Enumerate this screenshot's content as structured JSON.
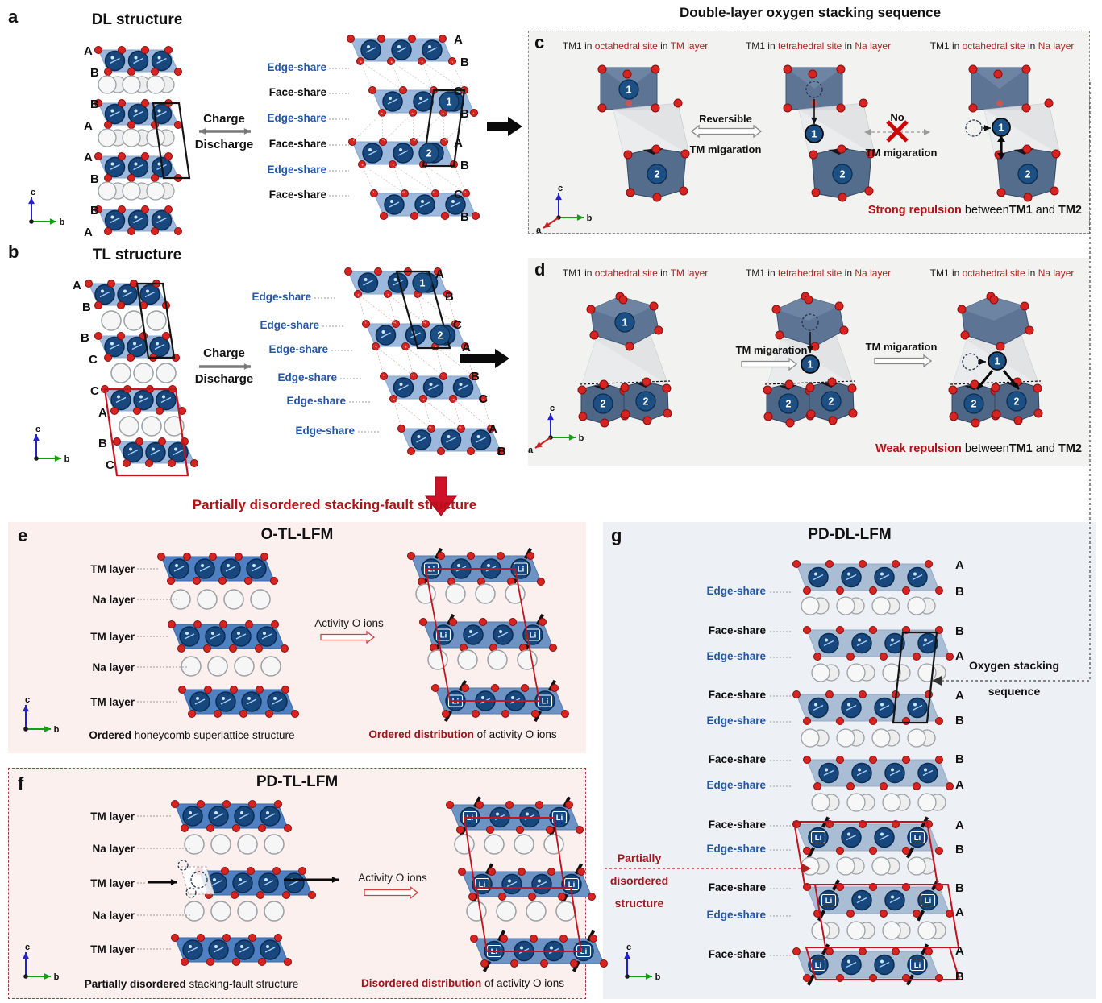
{
  "red_banner": "Partially disordered stacking-fault structure",
  "sites": [
    "1",
    "2"
  ],
  "li": "Li",
  "axes": {
    "a": "a",
    "b": "b",
    "c": "c"
  },
  "colors": {
    "edge_share_blue": "#2456a8",
    "dark_red": "#b41117",
    "caption_red": "#a0131a",
    "tm_layer_blue": "#9cb8dc",
    "tm_layer_blue_saturated": "#4f80c2",
    "tm_layer_steel": "#a9bdd4",
    "atom_navy": "#17477c",
    "oxygen_red": "#d82421",
    "octahedron_slate": "#5d7494",
    "panel_cd_bg": "#f2f2f0",
    "panel_ef_bg": "#fbf0ee",
    "panel_g_bg": "#edf1f6"
  },
  "panels": {
    "a": {
      "label": "a",
      "title": "DL structure",
      "charge": "Charge",
      "discharge": "Discharge",
      "left_letters": [
        "A",
        "B",
        "B",
        "A",
        "A",
        "B",
        "B",
        "A"
      ],
      "share_labels": [
        {
          "text": "Edge-share",
          "type": "edge"
        },
        {
          "text": "Face-share",
          "type": "face"
        },
        {
          "text": "Edge-share",
          "type": "edge"
        },
        {
          "text": "Face-share",
          "type": "face"
        },
        {
          "text": "Edge-share",
          "type": "edge"
        },
        {
          "text": "Face-share",
          "type": "face"
        }
      ],
      "right_letters": [
        "A",
        "B",
        "C",
        "B",
        "A",
        "B",
        "C",
        "B"
      ]
    },
    "b": {
      "label": "b",
      "title": "TL structure",
      "charge": "Charge",
      "discharge": "Discharge",
      "left_letters": [
        "A",
        "B",
        "B",
        "C",
        "C",
        "A",
        "B",
        "C"
      ],
      "share_labels": [
        {
          "text": "Edge-share",
          "type": "edge"
        },
        {
          "text": "Edge-share",
          "type": "edge"
        },
        {
          "text": "Edge-share",
          "type": "edge"
        },
        {
          "text": "Edge-share",
          "type": "edge"
        },
        {
          "text": "Edge-share",
          "type": "edge"
        },
        {
          "text": "Edge-share",
          "type": "edge"
        }
      ],
      "right_letters": [
        "A",
        "B",
        "C",
        "A",
        "B",
        "C",
        "A",
        "B"
      ]
    },
    "c": {
      "label": "c",
      "header": "Double-layer oxygen stacking sequence",
      "site_titles": [
        {
          "pre": "TM1 in ",
          "site": "octahedral site",
          "mid": " in ",
          "layer": "TM layer"
        },
        {
          "pre": "TM1 in ",
          "site": "tetrahedral site",
          "mid": " in ",
          "layer": "Na layer"
        },
        {
          "pre": "TM1 in ",
          "site": "octahedral site",
          "mid": " in ",
          "layer": "Na layer"
        }
      ],
      "reversible": "Reversible",
      "no_label": "No",
      "migration": "TM migaration",
      "repulsion": {
        "em": "Strong repulsion",
        "between": " between",
        "tm1": "TM1",
        "and": " and ",
        "tm2": "TM2"
      }
    },
    "d": {
      "label": "d",
      "site_titles": [
        {
          "pre": "TM1 in ",
          "site": "octahedral site",
          "mid": " in ",
          "layer": "TM layer"
        },
        {
          "pre": "TM1 in ",
          "site": "tetrahedral site",
          "mid": " in ",
          "layer": "Na layer"
        },
        {
          "pre": "TM1 in ",
          "site": "octahedral site",
          "mid": " in ",
          "layer": "Na layer"
        }
      ],
      "migration": "TM migaration",
      "repulsion": {
        "em": "Weak repulsion",
        "between": " between",
        "tm1": "TM1",
        "and": " and ",
        "tm2": "TM2"
      }
    },
    "e": {
      "label": "e",
      "title": "O-TL-LFM",
      "layer_labels": [
        "TM layer",
        "Na layer",
        "TM layer",
        "Na layer",
        "TM layer"
      ],
      "activity": "Activity O ions",
      "caption_left": {
        "bold": "Ordered",
        "rest": " honeycomb superlattice structure"
      },
      "caption_right": {
        "em": "Ordered distribution",
        "rest": " of activity O ions"
      }
    },
    "f": {
      "label": "f",
      "title": "PD-TL-LFM",
      "layer_labels": [
        "TM layer",
        "Na layer",
        "TM layer",
        "Na layer",
        "TM layer"
      ],
      "activity": "Activity O ions",
      "caption_left": {
        "bold": "Partially disordered",
        "rest": " stacking-fault structure"
      },
      "caption_right": {
        "em": "Disordered distribution",
        "rest": " of activity O ions"
      }
    },
    "g": {
      "label": "g",
      "title": "PD-DL-LFM",
      "share_labels": [
        {
          "text": "Edge-share",
          "type": "edge"
        },
        {
          "text": "Face-share",
          "type": "face"
        },
        {
          "text": "Edge-share",
          "type": "edge"
        },
        {
          "text": "Face-share",
          "type": "face"
        },
        {
          "text": "Edge-share",
          "type": "edge"
        },
        {
          "text": "Face-share",
          "type": "face"
        },
        {
          "text": "Edge-share",
          "type": "edge"
        },
        {
          "text": "Face-share",
          "type": "face"
        },
        {
          "text": "Edge-share",
          "type": "edge"
        },
        {
          "text": "Face-share",
          "type": "face"
        },
        {
          "text": "Edge-share",
          "type": "edge"
        },
        {
          "text": "Face-share",
          "type": "face"
        }
      ],
      "right_letters": [
        "A",
        "B",
        "B",
        "A",
        "A",
        "B",
        "B",
        "A",
        "A",
        "B",
        "B",
        "A",
        "A",
        "B"
      ],
      "oxygen_note": [
        "Oxygen stacking",
        "sequence"
      ],
      "pd_note": [
        "Partially",
        "disordered",
        "structure"
      ]
    }
  }
}
